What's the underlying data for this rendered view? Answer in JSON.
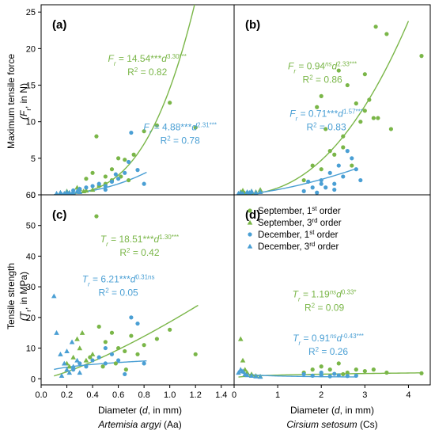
{
  "colors": {
    "green": "#7ab648",
    "blue": "#4a9fd4",
    "axis": "#000000"
  },
  "axis_titles": {
    "y_top": [
      "Maximum tensile force",
      "(F",
      "r",
      ", in N)"
    ],
    "y_bottom": [
      "Tensile strength",
      "(T",
      "r",
      ", in MPa)"
    ],
    "x": [
      "Diameter (",
      "d",
      ", in mm)"
    ],
    "x_sub_left": "Artemisia argyi",
    "x_sub_left_abbr": "(Aa)",
    "x_sub_right": "Cirsium setosum",
    "x_sub_right_abbr": "(Cs)"
  },
  "legend": [
    {
      "label": "September, 1st order",
      "color": "green",
      "marker": "circle"
    },
    {
      "label": "September, 3rd order",
      "color": "green",
      "marker": "triangle"
    },
    {
      "label": "December, 1st order",
      "color": "blue",
      "marker": "circle"
    },
    {
      "label": "December, 3rd order",
      "color": "blue",
      "marker": "triangle"
    }
  ],
  "chart_data": [
    {
      "panel": "(a)",
      "type": "scatter",
      "xlim": [
        0,
        1.5
      ],
      "ylim": [
        0,
        26
      ],
      "xticks": [
        "0.0",
        "0.2",
        "0.4",
        "0.6",
        "0.8",
        "1.0",
        "1.2",
        "1.4"
      ],
      "yticks": [
        "0",
        "5",
        "10",
        "15",
        "20",
        "25"
      ],
      "annotations": [
        {
          "color": "green",
          "lines": [
            "Fr = 14.54***d^3.30***",
            "R2 = 0.82"
          ]
        },
        {
          "color": "blue",
          "lines": [
            "Fr = 4.88***d^2.31***",
            "R2 = 0.78"
          ]
        }
      ],
      "fits": [
        {
          "color": "green",
          "a": 14.54,
          "b": 3.3,
          "xrange": [
            0.1,
            1.24
          ]
        },
        {
          "color": "blue",
          "a": 4.88,
          "b": 2.31,
          "xrange": [
            0.1,
            0.82
          ]
        }
      ],
      "series": [
        {
          "color": "green",
          "marker": "circle",
          "points": [
            [
              0.35,
              2.2
            ],
            [
              0.4,
              3.0
            ],
            [
              0.43,
              8.0
            ],
            [
              0.5,
              2.5
            ],
            [
              0.55,
              3.5
            ],
            [
              0.6,
              5.0
            ],
            [
              0.65,
              4.8
            ],
            [
              0.68,
              2.0
            ],
            [
              0.72,
              5.5
            ],
            [
              0.8,
              8.7
            ],
            [
              0.9,
              9.5
            ],
            [
              1.0,
              12.6
            ],
            [
              1.2,
              9.2
            ],
            [
              0.45,
              1.2
            ],
            [
              0.5,
              1.5
            ],
            [
              0.55,
              2.0
            ],
            [
              0.62,
              2.5
            ]
          ]
        },
        {
          "color": "green",
          "marker": "triangle",
          "points": [
            [
              0.15,
              0.3
            ],
            [
              0.2,
              0.5
            ],
            [
              0.25,
              0.4
            ],
            [
              0.3,
              0.8
            ],
            [
              0.35,
              0.6
            ],
            [
              0.22,
              0.3
            ],
            [
              0.28,
              1.0
            ],
            [
              0.33,
              0.5
            ],
            [
              0.4,
              0.7
            ]
          ]
        },
        {
          "color": "blue",
          "marker": "circle",
          "points": [
            [
              0.25,
              0.6
            ],
            [
              0.3,
              0.8
            ],
            [
              0.35,
              1.0
            ],
            [
              0.4,
              1.2
            ],
            [
              0.45,
              1.5
            ],
            [
              0.5,
              1.2
            ],
            [
              0.55,
              1.8
            ],
            [
              0.6,
              2.2
            ],
            [
              0.65,
              3.0
            ],
            [
              0.7,
              8.5
            ],
            [
              0.75,
              3.4
            ],
            [
              0.8,
              1.5
            ],
            [
              0.5,
              0.7
            ],
            [
              0.58,
              2.8
            ],
            [
              0.68,
              4.5
            ]
          ]
        },
        {
          "color": "blue",
          "marker": "triangle",
          "points": [
            [
              0.12,
              0.2
            ],
            [
              0.15,
              0.3
            ],
            [
              0.18,
              0.2
            ],
            [
              0.2,
              0.4
            ],
            [
              0.22,
              0.3
            ],
            [
              0.25,
              0.3
            ],
            [
              0.28,
              0.5
            ],
            [
              0.3,
              0.4
            ],
            [
              0.16,
              0.1
            ],
            [
              0.24,
              0.2
            ]
          ]
        }
      ]
    },
    {
      "panel": "(b)",
      "type": "scatter",
      "xlim": [
        0,
        4.5
      ],
      "ylim": [
        0,
        26
      ],
      "annotations": [
        {
          "color": "green",
          "lines": [
            "Fr = 0.94nsd^2.33***",
            "R2 = 0.86"
          ]
        },
        {
          "color": "blue",
          "lines": [
            "Fr = 0.71***d^1.57***",
            "R2 = 0.83"
          ]
        }
      ],
      "fits": [
        {
          "color": "green",
          "a": 0.94,
          "b": 2.33,
          "xrange": [
            0.1,
            4.0
          ]
        },
        {
          "color": "blue",
          "a": 0.71,
          "b": 1.57,
          "xrange": [
            0.1,
            2.8
          ]
        }
      ],
      "series": [
        {
          "color": "green",
          "marker": "circle",
          "points": [
            [
              1.6,
              2.0
            ],
            [
              1.8,
              4.0
            ],
            [
              1.9,
              12.0
            ],
            [
              2.0,
              13.5
            ],
            [
              2.1,
              9.0
            ],
            [
              2.2,
              6.0
            ],
            [
              2.3,
              5.5
            ],
            [
              2.4,
              17.0
            ],
            [
              2.5,
              8.0
            ],
            [
              2.6,
              15.0
            ],
            [
              2.7,
              4.0
            ],
            [
              2.8,
              12.5
            ],
            [
              3.0,
              11.5
            ],
            [
              3.1,
              13.0
            ],
            [
              3.2,
              10.5
            ],
            [
              3.25,
              23.0
            ],
            [
              3.5,
              22.0
            ],
            [
              3.6,
              9.0
            ],
            [
              4.3,
              19.0
            ],
            [
              3.0,
              16.5
            ],
            [
              2.9,
              10.0
            ],
            [
              2.5,
              6.5
            ],
            [
              2.0,
              3.5
            ],
            [
              3.3,
              10.5
            ]
          ]
        },
        {
          "color": "green",
          "marker": "triangle",
          "points": [
            [
              0.15,
              0.4
            ],
            [
              0.2,
              0.6
            ],
            [
              0.3,
              0.3
            ],
            [
              0.4,
              0.5
            ],
            [
              0.5,
              0.4
            ],
            [
              0.6,
              0.7
            ],
            [
              0.25,
              0.2
            ]
          ]
        },
        {
          "color": "blue",
          "marker": "circle",
          "points": [
            [
              1.6,
              0.5
            ],
            [
              1.8,
              1.0
            ],
            [
              1.9,
              0.3
            ],
            [
              2.0,
              2.0
            ],
            [
              2.1,
              1.0
            ],
            [
              2.2,
              3.0
            ],
            [
              2.3,
              1.5
            ],
            [
              2.4,
              4.0
            ],
            [
              2.5,
              2.5
            ],
            [
              2.6,
              6.0
            ],
            [
              2.7,
              5.0
            ],
            [
              2.8,
              3.5
            ],
            [
              2.9,
              2.0
            ],
            [
              2.0,
              1.5
            ],
            [
              2.3,
              0.7
            ],
            [
              1.7,
              1.8
            ]
          ]
        },
        {
          "color": "blue",
          "marker": "triangle",
          "points": [
            [
              0.1,
              0.2
            ],
            [
              0.15,
              0.3
            ],
            [
              0.2,
              0.2
            ],
            [
              0.3,
              0.4
            ],
            [
              0.35,
              0.3
            ],
            [
              0.4,
              0.5
            ],
            [
              0.5,
              0.3
            ],
            [
              0.6,
              0.4
            ]
          ]
        }
      ]
    },
    {
      "panel": "(c)",
      "type": "scatter",
      "xlim": [
        0,
        1.5
      ],
      "ylim": [
        -2,
        60
      ],
      "xticks": [
        "0.0",
        "0.2",
        "0.4",
        "0.6",
        "0.8",
        "1.0",
        "1.2",
        "1.4"
      ],
      "yticks": [
        "0",
        "10",
        "20",
        "30",
        "40",
        "50",
        "60"
      ],
      "annotations": [
        {
          "color": "green",
          "lines": [
            "Tr = 18.51***d^1.30***",
            "R2 = 0.42"
          ]
        },
        {
          "color": "blue",
          "lines": [
            "Tr = 6.21***d^0.31ns",
            "R2 = 0.05"
          ]
        }
      ],
      "fits": [
        {
          "color": "green",
          "a": 18.51,
          "b": 1.3,
          "xrange": [
            0.1,
            1.22
          ]
        },
        {
          "color": "blue",
          "a": 6.21,
          "b": 0.31,
          "xrange": [
            0.1,
            0.82
          ]
        }
      ],
      "series": [
        {
          "color": "green",
          "marker": "circle",
          "points": [
            [
              0.43,
              53
            ],
            [
              0.45,
              17
            ],
            [
              0.5,
              12
            ],
            [
              0.55,
              15
            ],
            [
              0.6,
              10
            ],
            [
              0.65,
              9
            ],
            [
              0.7,
              14
            ],
            [
              0.75,
              8
            ],
            [
              0.8,
              11
            ],
            [
              0.9,
              13
            ],
            [
              1.0,
              16
            ],
            [
              1.2,
              8
            ],
            [
              0.38,
              7
            ],
            [
              0.48,
              4
            ],
            [
              0.58,
              5
            ],
            [
              0.66,
              3
            ]
          ]
        },
        {
          "color": "green",
          "marker": "triangle",
          "points": [
            [
              0.2,
              5
            ],
            [
              0.25,
              7
            ],
            [
              0.3,
              10
            ],
            [
              0.35,
              6
            ],
            [
              0.28,
              13
            ],
            [
              0.32,
              15
            ],
            [
              0.4,
              8
            ],
            [
              0.22,
              4
            ]
          ]
        },
        {
          "color": "blue",
          "marker": "circle",
          "points": [
            [
              0.25,
              3
            ],
            [
              0.3,
              5
            ],
            [
              0.35,
              4
            ],
            [
              0.4,
              6
            ],
            [
              0.45,
              7
            ],
            [
              0.5,
              5
            ],
            [
              0.55,
              8
            ],
            [
              0.6,
              6
            ],
            [
              0.65,
              1.5
            ],
            [
              0.7,
              20
            ],
            [
              0.75,
              18
            ],
            [
              0.8,
              5
            ],
            [
              0.5,
              10
            ]
          ]
        },
        {
          "color": "blue",
          "marker": "triangle",
          "points": [
            [
              0.1,
              27
            ],
            [
              0.12,
              15
            ],
            [
              0.15,
              8
            ],
            [
              0.18,
              5
            ],
            [
              0.2,
              3
            ],
            [
              0.22,
              2
            ],
            [
              0.25,
              4
            ],
            [
              0.28,
              6
            ],
            [
              0.3,
              2
            ],
            [
              0.16,
              1
            ],
            [
              0.2,
              9
            ],
            [
              0.24,
              12
            ]
          ]
        }
      ]
    },
    {
      "panel": "(d)",
      "type": "scatter",
      "xlim": [
        0,
        4.5
      ],
      "ylim": [
        -2,
        60
      ],
      "xticks": [
        "0",
        "1",
        "2",
        "3",
        "4"
      ],
      "annotations": [
        {
          "color": "green",
          "lines": [
            "Tr = 1.19nsd^0.33*",
            "R2 = 0.09"
          ]
        },
        {
          "color": "blue",
          "lines": [
            "Tr = 0.91nsd^-0.43***",
            "R2 = 0.26"
          ]
        }
      ],
      "fits": [
        {
          "color": "green",
          "a": 1.19,
          "b": 0.33,
          "xrange": [
            0.1,
            4.3
          ]
        },
        {
          "color": "blue",
          "a": 0.91,
          "b": -0.43,
          "xrange": [
            0.1,
            2.8
          ]
        }
      ],
      "series": [
        {
          "color": "green",
          "marker": "circle",
          "points": [
            [
              1.6,
              2
            ],
            [
              1.8,
              3
            ],
            [
              2.0,
              4
            ],
            [
              2.2,
              3
            ],
            [
              2.4,
              5
            ],
            [
              2.6,
              2
            ],
            [
              2.8,
              3
            ],
            [
              3.0,
              2.5
            ],
            [
              3.2,
              3
            ],
            [
              3.5,
              2
            ],
            [
              4.3,
              1.8
            ],
            [
              2.5,
              1.5
            ]
          ]
        },
        {
          "color": "green",
          "marker": "triangle",
          "points": [
            [
              0.15,
              13
            ],
            [
              0.2,
              6
            ],
            [
              0.25,
              3
            ],
            [
              0.3,
              2
            ],
            [
              0.4,
              1.5
            ],
            [
              0.5,
              1
            ],
            [
              0.6,
              0.8
            ]
          ]
        },
        {
          "color": "blue",
          "marker": "circle",
          "points": [
            [
              1.6,
              1.5
            ],
            [
              1.8,
              1
            ],
            [
              2.0,
              1.2
            ],
            [
              2.2,
              0.8
            ],
            [
              2.4,
              1.1
            ],
            [
              2.6,
              0.9
            ],
            [
              2.8,
              1
            ],
            [
              2.0,
              2
            ],
            [
              2.3,
              1.6
            ]
          ]
        },
        {
          "color": "blue",
          "marker": "triangle",
          "points": [
            [
              0.1,
              2
            ],
            [
              0.15,
              3
            ],
            [
              0.2,
              2.5
            ],
            [
              0.25,
              1.5
            ],
            [
              0.3,
              1.2
            ],
            [
              0.4,
              1
            ],
            [
              0.5,
              0.8
            ],
            [
              0.6,
              0.7
            ]
          ]
        }
      ]
    }
  ]
}
